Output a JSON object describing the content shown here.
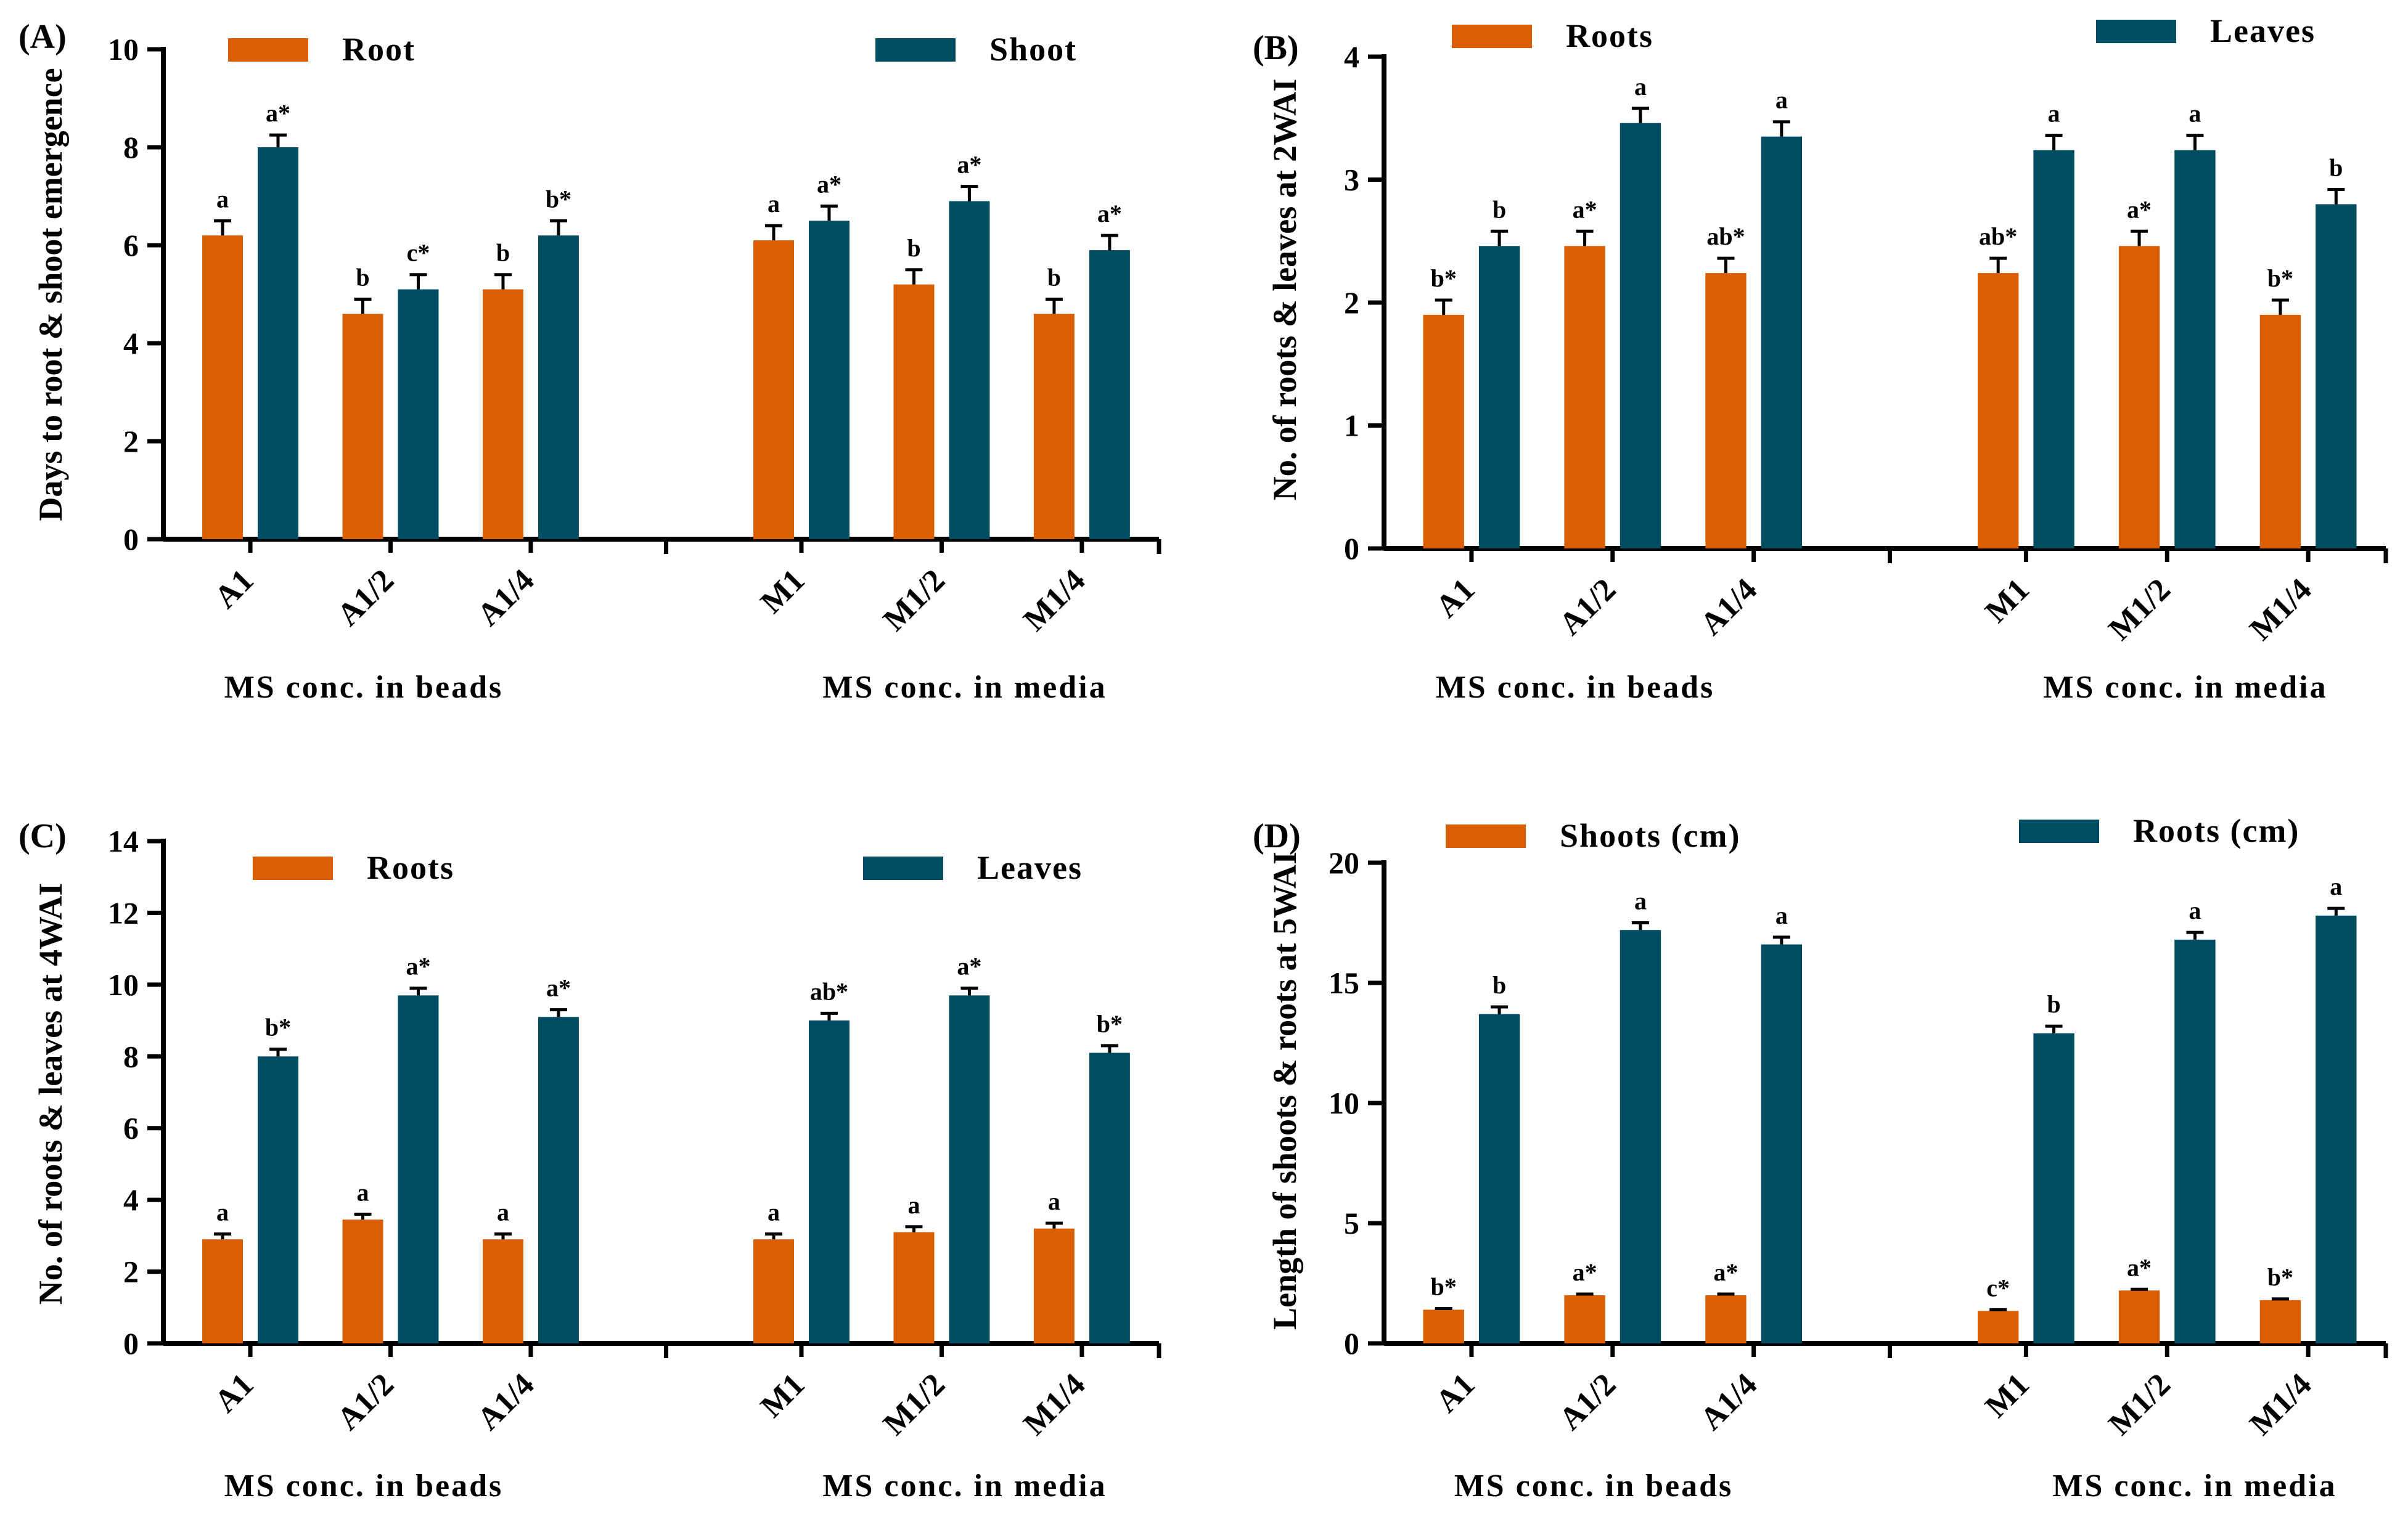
{
  "colors": {
    "series1": "#D95F02",
    "series2": "#004D61",
    "axis": "#000000"
  },
  "chart_data": [
    {
      "panel": "(A)",
      "type": "bar",
      "ylabel": "Days to root & shoot emergence",
      "ylim": [
        0,
        10
      ],
      "yticks": [
        0,
        2,
        4,
        6,
        8,
        10
      ],
      "categories": [
        "A1",
        "A1/2",
        "A1/4",
        "M1",
        "M1/2",
        "M1/4"
      ],
      "groups": [
        "MS conc. in beads",
        "MS conc. in media"
      ],
      "series": [
        {
          "name": "Root",
          "values": [
            6.2,
            4.6,
            5.1,
            6.1,
            5.2,
            4.6
          ],
          "errors": [
            0.3,
            0.3,
            0.3,
            0.3,
            0.3,
            0.3
          ],
          "labels": [
            "a",
            "b",
            "b",
            "a",
            "b",
            "b"
          ]
        },
        {
          "name": "Shoot",
          "values": [
            8.0,
            5.1,
            6.2,
            6.5,
            6.9,
            5.9
          ],
          "errors": [
            0.25,
            0.3,
            0.3,
            0.3,
            0.3,
            0.3
          ],
          "labels": [
            "a*",
            "c*",
            "b*",
            "a*",
            "a*",
            "a*"
          ]
        }
      ]
    },
    {
      "panel": "(B)",
      "type": "bar",
      "ylabel": "No. of roots & leaves at 2WAI",
      "ylim": [
        0,
        4
      ],
      "yticks": [
        0,
        1,
        2,
        3,
        4
      ],
      "categories": [
        "A1",
        "A1/2",
        "A1/4",
        "M1",
        "M1/2",
        "M1/4"
      ],
      "groups": [
        "MS conc. in beads",
        "MS conc. in media"
      ],
      "series": [
        {
          "name": "Roots",
          "values": [
            1.9,
            2.46,
            2.24,
            2.24,
            2.46,
            1.9
          ],
          "errors": [
            0.12,
            0.12,
            0.12,
            0.12,
            0.12,
            0.12
          ],
          "labels": [
            "b*",
            "a*",
            "ab*",
            "ab*",
            "a*",
            "b*"
          ]
        },
        {
          "name": "Leaves",
          "values": [
            2.46,
            3.46,
            3.35,
            3.24,
            3.24,
            2.8
          ],
          "errors": [
            0.12,
            0.12,
            0.12,
            0.12,
            0.12,
            0.12
          ],
          "labels": [
            "b",
            "a",
            "a",
            "a",
            "a",
            "b"
          ]
        }
      ]
    },
    {
      "panel": "(C)",
      "type": "bar",
      "ylabel": "No. of roots & leaves at 4WAI",
      "ylim": [
        0,
        14
      ],
      "yticks": [
        0,
        2,
        4,
        6,
        8,
        10,
        12,
        14
      ],
      "categories": [
        "A1",
        "A1/2",
        "A1/4",
        "M1",
        "M1/2",
        "M1/4"
      ],
      "groups": [
        "MS conc. in beads",
        "MS conc. in media"
      ],
      "series": [
        {
          "name": "Roots",
          "values": [
            2.9,
            3.45,
            2.9,
            2.9,
            3.1,
            3.2
          ],
          "errors": [
            0.15,
            0.15,
            0.15,
            0.15,
            0.15,
            0.15
          ],
          "labels": [
            "a",
            "a",
            "a",
            "a",
            "a",
            "a"
          ]
        },
        {
          "name": "Leaves",
          "values": [
            8.0,
            9.7,
            9.1,
            9.0,
            9.7,
            8.1
          ],
          "errors": [
            0.2,
            0.2,
            0.2,
            0.2,
            0.2,
            0.2
          ],
          "labels": [
            "b*",
            "a*",
            "a*",
            "ab*",
            "a*",
            "b*"
          ]
        }
      ]
    },
    {
      "panel": "(D)",
      "type": "bar",
      "ylabel": "Length of shoots & roots at 5WAI",
      "ylim": [
        0,
        20
      ],
      "yticks": [
        0,
        5,
        10,
        15,
        20
      ],
      "categories": [
        "A1",
        "A1/2",
        "A1/4",
        "M1",
        "M1/2",
        "M1/4"
      ],
      "groups": [
        "MS conc. in beads",
        "MS conc. in media"
      ],
      "series": [
        {
          "name": "Shoots (cm)",
          "values": [
            1.4,
            2.0,
            2.0,
            1.35,
            2.2,
            1.8
          ],
          "errors": [
            0.05,
            0.05,
            0.05,
            0.05,
            0.05,
            0.05
          ],
          "labels": [
            "b*",
            "a*",
            "a*",
            "c*",
            "a*",
            "b*"
          ]
        },
        {
          "name": "Roots (cm)",
          "values": [
            13.7,
            17.2,
            16.6,
            12.9,
            16.8,
            17.8
          ],
          "errors": [
            0.3,
            0.3,
            0.3,
            0.3,
            0.3,
            0.3
          ],
          "labels": [
            "b",
            "a",
            "a",
            "b",
            "a",
            "a"
          ]
        }
      ]
    }
  ]
}
